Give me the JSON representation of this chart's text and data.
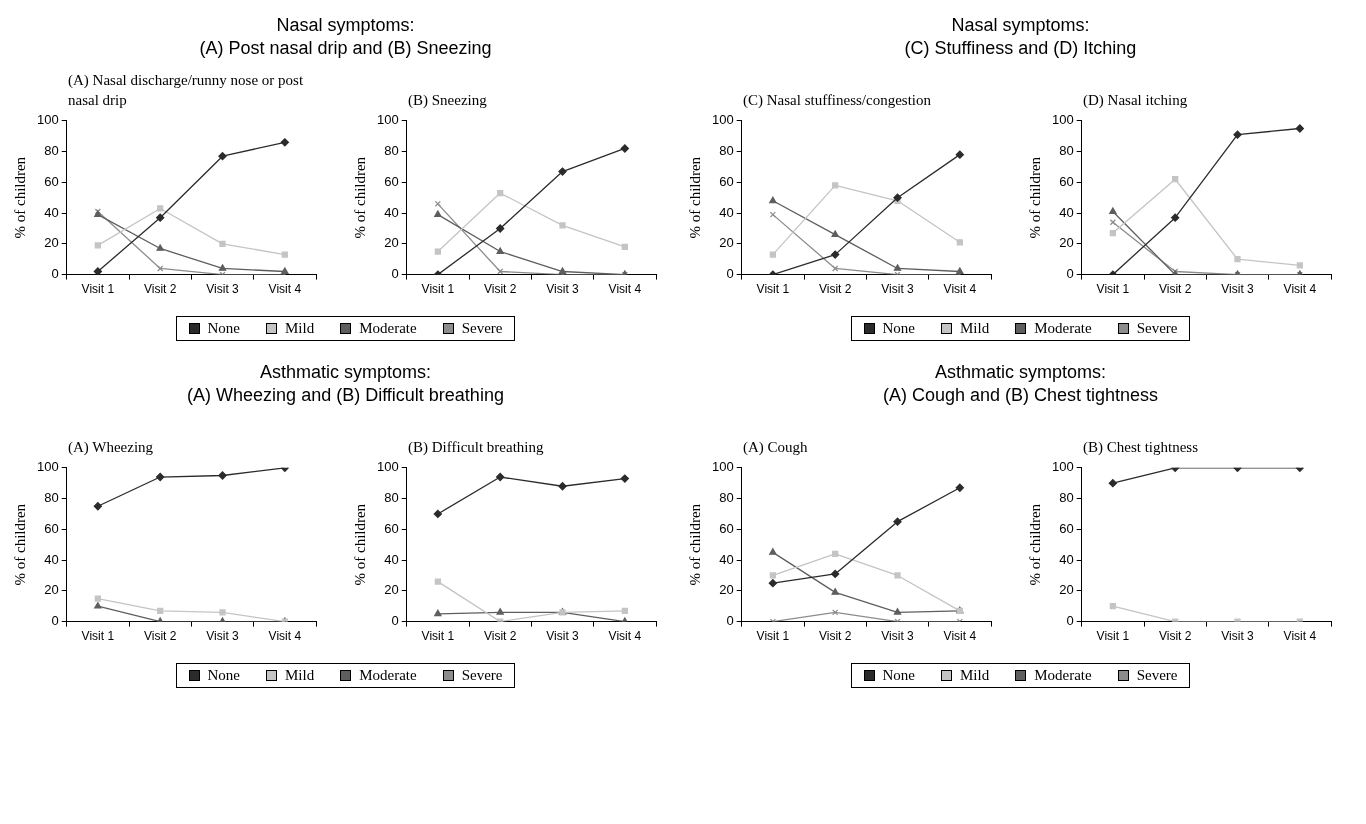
{
  "chart_data": [
    {
      "type": "line",
      "title": "Nasal symptoms:\n(A) Post nasal drip and (B) Sneezing",
      "subtitle": "(A) Nasal discharge/runny nose or post nasal drip",
      "ylabel": "% of children",
      "categories": [
        "Visit 1",
        "Visit 2",
        "Visit 3",
        "Visit 4"
      ],
      "ylim": [
        0,
        100
      ],
      "yticks": [
        0,
        20,
        40,
        60,
        80,
        100
      ],
      "legend": "bottom",
      "series": [
        {
          "name": "None",
          "color": "#2b2b2b",
          "marker": "diamond",
          "values": [
            2,
            37,
            77,
            86
          ]
        },
        {
          "name": "Mild",
          "color": "#c4c4c4",
          "marker": "square",
          "values": [
            19,
            43,
            20,
            13
          ]
        },
        {
          "name": "Moderate",
          "color": "#5e5e5e",
          "marker": "triangle",
          "values": [
            39,
            17,
            4,
            2
          ]
        },
        {
          "name": "Severe",
          "color": "#8c8c8c",
          "marker": "cross",
          "values": [
            41,
            4,
            0,
            0
          ]
        }
      ]
    },
    {
      "type": "line",
      "subtitle": "(B) Sneezing",
      "ylabel": "% of children",
      "categories": [
        "Visit 1",
        "Visit 2",
        "Visit 3",
        "Visit 4"
      ],
      "ylim": [
        0,
        100
      ],
      "yticks": [
        0,
        20,
        40,
        60,
        80,
        100
      ],
      "series": [
        {
          "color": "#2b2b2b",
          "marker": "diamond",
          "values": [
            0,
            30,
            67,
            82
          ]
        },
        {
          "color": "#c4c4c4",
          "marker": "square",
          "values": [
            15,
            53,
            32,
            18
          ]
        },
        {
          "color": "#5e5e5e",
          "marker": "triangle",
          "values": [
            39,
            15,
            2,
            0
          ]
        },
        {
          "color": "#8c8c8c",
          "marker": "cross",
          "values": [
            46,
            2,
            0,
            0
          ]
        }
      ]
    },
    {
      "type": "line",
      "title": "Nasal symptoms:\n(C) Stuffiness and (D) Itching",
      "subtitle": "(C) Nasal stuffiness/congestion",
      "ylabel": "% of children",
      "categories": [
        "Visit 1",
        "Visit 2",
        "Visit 3",
        "Visit 4"
      ],
      "ylim": [
        0,
        100
      ],
      "yticks": [
        0,
        20,
        40,
        60,
        80,
        100
      ],
      "legend": "bottom",
      "series": [
        {
          "name": "None",
          "color": "#2b2b2b",
          "marker": "diamond",
          "values": [
            0,
            13,
            50,
            78
          ]
        },
        {
          "name": "Mild",
          "color": "#c4c4c4",
          "marker": "square",
          "values": [
            13,
            58,
            48,
            21
          ]
        },
        {
          "name": "Moderate",
          "color": "#5e5e5e",
          "marker": "triangle",
          "values": [
            48,
            26,
            4,
            2
          ]
        },
        {
          "name": "Severe",
          "color": "#8c8c8c",
          "marker": "cross",
          "values": [
            39,
            4,
            0,
            0
          ]
        }
      ]
    },
    {
      "type": "line",
      "subtitle": "(D) Nasal itching",
      "ylabel": "% of children",
      "categories": [
        "Visit 1",
        "Visit 2",
        "Visit 3",
        "Visit 4"
      ],
      "ylim": [
        0,
        100
      ],
      "yticks": [
        0,
        20,
        40,
        60,
        80,
        100
      ],
      "series": [
        {
          "color": "#2b2b2b",
          "marker": "diamond",
          "values": [
            0,
            37,
            91,
            95
          ]
        },
        {
          "color": "#c4c4c4",
          "marker": "square",
          "values": [
            27,
            62,
            10,
            6
          ]
        },
        {
          "color": "#5e5e5e",
          "marker": "triangle",
          "values": [
            41,
            0,
            0,
            0
          ]
        },
        {
          "color": "#8c8c8c",
          "marker": "cross",
          "values": [
            34,
            2,
            0,
            0
          ]
        }
      ]
    },
    {
      "type": "line",
      "title": "Asthmatic symptoms:\n(A) Wheezing and (B) Difficult breathing",
      "subtitle": "(A) Wheezing",
      "ylabel": "% of children",
      "categories": [
        "Visit 1",
        "Visit 2",
        "Visit 3",
        "Visit 4"
      ],
      "ylim": [
        0,
        100
      ],
      "yticks": [
        0,
        20,
        40,
        60,
        80,
        100
      ],
      "legend": "bottom",
      "series": [
        {
          "name": "None",
          "color": "#2b2b2b",
          "marker": "diamond",
          "values": [
            75,
            94,
            95,
            100
          ]
        },
        {
          "name": "Mild",
          "color": "#c4c4c4",
          "marker": "square",
          "values": [
            15,
            7,
            6,
            0
          ]
        },
        {
          "name": "Moderate",
          "color": "#5e5e5e",
          "marker": "triangle",
          "values": [
            10,
            0,
            0,
            0
          ]
        },
        {
          "name": "Severe",
          "color": "#8c8c8c",
          "marker": "cross",
          "values": [
            null,
            null,
            null,
            null
          ]
        }
      ]
    },
    {
      "type": "line",
      "subtitle": "(B) Difficult breathing",
      "ylabel": "% of children",
      "categories": [
        "Visit 1",
        "Visit 2",
        "Visit 3",
        "Visit 4"
      ],
      "ylim": [
        0,
        100
      ],
      "yticks": [
        0,
        20,
        40,
        60,
        80,
        100
      ],
      "series": [
        {
          "color": "#2b2b2b",
          "marker": "diamond",
          "values": [
            70,
            94,
            88,
            93
          ]
        },
        {
          "color": "#c4c4c4",
          "marker": "square",
          "values": [
            26,
            0,
            6,
            7
          ]
        },
        {
          "color": "#5e5e5e",
          "marker": "triangle",
          "values": [
            5,
            6,
            6,
            0
          ]
        }
      ]
    },
    {
      "type": "line",
      "title": "Asthmatic symptoms:\n(A) Cough and (B) Chest tightness",
      "subtitle": "(A) Cough",
      "ylabel": "% of children",
      "categories": [
        "Visit 1",
        "Visit 2",
        "Visit 3",
        "Visit 4"
      ],
      "ylim": [
        0,
        100
      ],
      "yticks": [
        0,
        20,
        40,
        60,
        80,
        100
      ],
      "legend": "bottom",
      "series": [
        {
          "name": "None",
          "color": "#2b2b2b",
          "marker": "diamond",
          "values": [
            25,
            31,
            65,
            87
          ]
        },
        {
          "name": "Mild",
          "color": "#c4c4c4",
          "marker": "square",
          "values": [
            30,
            44,
            30,
            7
          ]
        },
        {
          "name": "Moderate",
          "color": "#5e5e5e",
          "marker": "triangle",
          "values": [
            45,
            19,
            6,
            7
          ]
        },
        {
          "name": "Severe",
          "color": "#8c8c8c",
          "marker": "cross",
          "values": [
            0,
            6,
            0,
            0
          ]
        }
      ]
    },
    {
      "type": "line",
      "subtitle": "(B) Chest tightness",
      "ylabel": "% of children",
      "categories": [
        "Visit 1",
        "Visit 2",
        "Visit 3",
        "Visit 4"
      ],
      "ylim": [
        0,
        100
      ],
      "yticks": [
        0,
        20,
        40,
        60,
        80,
        100
      ],
      "series": [
        {
          "color": "#2b2b2b",
          "marker": "diamond",
          "values": [
            90,
            100,
            100,
            100
          ]
        },
        {
          "color": "#c4c4c4",
          "marker": "square",
          "values": [
            10,
            0,
            0,
            0
          ]
        }
      ]
    }
  ]
}
